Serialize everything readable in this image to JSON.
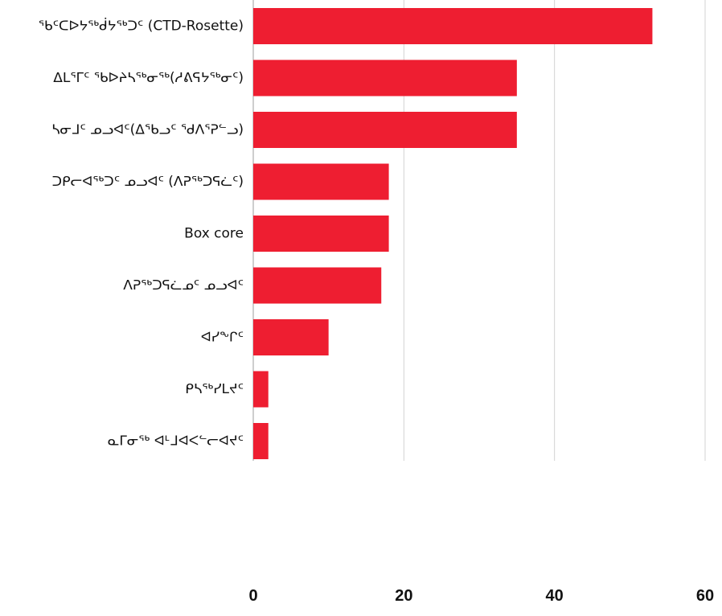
{
  "chart_data": {
    "type": "bar",
    "orientation": "horizontal",
    "categories": [
      "ᖃᑦᑕᐅᔭᖅᑰᔭᖅᑐᑦ (CTD-Rosette)",
      "ᐃᒪᕐᒥᑦ ᖃᐅᔨᓴᖅᓂᖅ(ᓱᕕᕋᔭᖅᓂᑦ)",
      "ᓴᓂᒧᑦ ᓄᓗᐊᑦ(ᐃᖃᓗᑦ ᖁᐱᕐᕈᓪᓗ)",
      "ᑐᑭᓕᐊᖅᑐᑦ ᓄᓗᐊᑦ (ᐱᕈᖅᑐᕋᓛᑦ)",
      "Box core",
      "ᐱᕈᖅᑐᕋᓛᓄᑦ ᓄᓗᐊᑦ",
      "ᐊᓯᖕᒋᑦ",
      "ᑭᓴᖅᓯᒪᔪᑦ",
      "ᓇᒥᓂᖅ ᐊᒻᒧᐊᐸᓪᓕᐊᔪᑦ"
    ],
    "values": [
      53,
      35,
      35,
      18,
      18,
      17,
      10,
      2,
      2
    ],
    "xlim": [
      0,
      60
    ],
    "xticks": [
      0,
      20,
      40,
      60
    ],
    "xtick_labels": [
      "0",
      "20",
      "40",
      "60"
    ],
    "title": "",
    "xlabel": "",
    "ylabel": "",
    "grid": "vertical",
    "legend": "none",
    "colors": {
      "bar": "#EE1E31",
      "grid": "#D3D3D3",
      "axis": "#9E9E9E",
      "text": "#111111"
    }
  }
}
